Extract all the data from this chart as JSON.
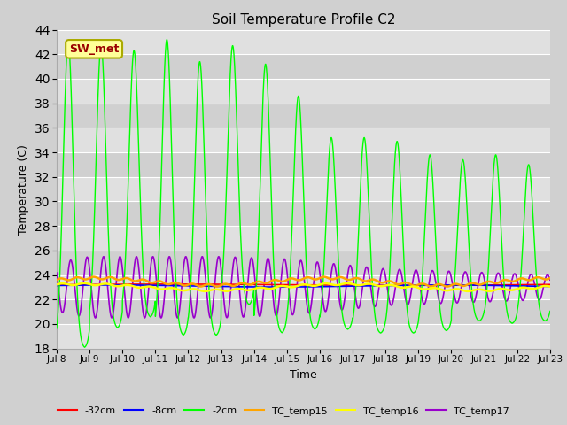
{
  "title": "Soil Temperature Profile C2",
  "xlabel": "Time",
  "ylabel": "Temperature (C)",
  "ylim": [
    18,
    44
  ],
  "x_tick_labels": [
    "Jul 8",
    "Jul 9",
    "Jul 10",
    "Jul 11",
    "Jul 12",
    "Jul 13",
    "Jul 14",
    "Jul 15",
    "Jul 16",
    "Jul 17",
    "Jul 18",
    "Jul 19",
    "Jul 20",
    "Jul 21",
    "Jul 22",
    "Jul 23"
  ],
  "legend_labels": [
    "-32cm",
    "-8cm",
    "-2cm",
    "TC_temp15",
    "TC_temp16",
    "TC_temp17"
  ],
  "legend_colors": [
    "#ff0000",
    "#0000ff",
    "#00ff00",
    "#ffa500",
    "#ffff00",
    "#9900cc"
  ],
  "annotation_text": "SW_met",
  "annotation_bg": "#ffff99",
  "annotation_border": "#aaaa00",
  "annotation_text_color": "#990000",
  "series_colors": {
    "depth_32cm": "#ff0000",
    "depth_8cm": "#0000ff",
    "depth_2cm": "#00ff00",
    "tc15": "#ffa500",
    "tc16": "#ffff00",
    "tc17": "#9900cc"
  },
  "base_temp": 23.2,
  "tc15_base": 23.45,
  "tc16_base": 23.1,
  "tc17_base": 23.0,
  "green_peaks": [
    43.0,
    42.7,
    42.3,
    43.2,
    41.4,
    42.7,
    41.2,
    38.6,
    35.2,
    35.2,
    34.9,
    33.8,
    33.4,
    33.8,
    33.0
  ],
  "green_troughs": [
    18.0,
    19.6,
    20.5,
    19.0,
    19.0,
    21.5,
    19.2,
    19.5,
    19.5,
    19.2,
    19.2,
    19.4,
    20.2,
    20.0,
    20.2
  ]
}
